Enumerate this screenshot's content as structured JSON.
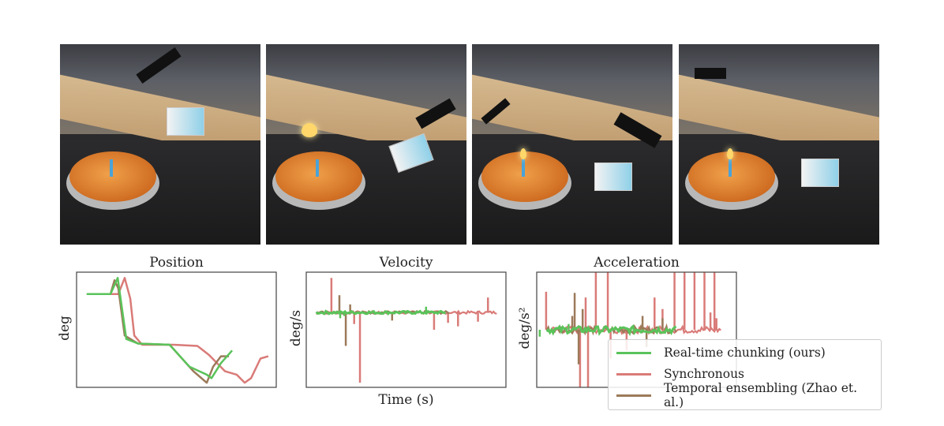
{
  "photos": [
    {
      "label": "frame-1",
      "flame": false
    },
    {
      "label": "frame-2",
      "flame": true
    },
    {
      "label": "frame-3",
      "flame": true
    },
    {
      "label": "frame-4",
      "flame": true
    }
  ],
  "colors": {
    "rtc": "#5ac35a",
    "sync": "#d97b78",
    "te": "#9c7a5a",
    "axis": "#444444"
  },
  "legend": {
    "items": [
      {
        "key": "rtc",
        "label": "Real-time chunking (ours)"
      },
      {
        "key": "sync",
        "label": "Synchronous"
      },
      {
        "key": "te",
        "label": "Temporal ensembling (Zhao et. al.)"
      }
    ]
  },
  "chart_data": [
    {
      "type": "line",
      "title": "Position",
      "xlabel": "",
      "ylabel": "deg",
      "xticks": [],
      "yticks": [],
      "grid": false,
      "xlim": [
        0,
        10
      ],
      "ylim": [
        0,
        1
      ],
      "series": [
        {
          "key": "sync",
          "points": [
            [
              0.51,
              0.81
            ],
            [
              2.09,
              0.81
            ],
            [
              2.41,
              0.95
            ],
            [
              2.69,
              0.77
            ],
            [
              2.89,
              0.45
            ],
            [
              3.28,
              0.37
            ],
            [
              4.86,
              0.37
            ],
            [
              6.05,
              0.36
            ],
            [
              6.64,
              0.28
            ],
            [
              7.43,
              0.14
            ],
            [
              8.02,
              0.11
            ],
            [
              8.42,
              0.04
            ],
            [
              8.74,
              0.08
            ],
            [
              9.21,
              0.25
            ],
            [
              9.6,
              0.27
            ]
          ]
        },
        {
          "key": "te",
          "points": [
            [
              0.51,
              0.81
            ],
            [
              1.7,
              0.81
            ],
            [
              1.9,
              0.93
            ],
            [
              2.09,
              0.86
            ],
            [
              2.41,
              0.45
            ],
            [
              3.08,
              0.38
            ],
            [
              4.66,
              0.37
            ],
            [
              5.85,
              0.14
            ],
            [
              6.52,
              0.04
            ],
            [
              6.84,
              0.18
            ],
            [
              7.23,
              0.27
            ],
            [
              7.63,
              0.27
            ]
          ]
        },
        {
          "key": "rtc",
          "points": [
            [
              0.51,
              0.81
            ],
            [
              1.7,
              0.81
            ],
            [
              2.06,
              0.95
            ],
            [
              2.49,
              0.42
            ],
            [
              3.08,
              0.38
            ],
            [
              4.66,
              0.37
            ],
            [
              5.65,
              0.18
            ],
            [
              6.52,
              0.11
            ],
            [
              6.76,
              0.08
            ],
            [
              7.23,
              0.21
            ],
            [
              7.79,
              0.32
            ]
          ]
        }
      ]
    },
    {
      "type": "line",
      "title": "Velocity",
      "xlabel": "Time (s)",
      "ylabel": "deg/s",
      "xticks": [],
      "yticks": [],
      "grid": false,
      "xlim": [
        0,
        10
      ],
      "ylim": [
        0,
        1
      ],
      "baseline": 0.65,
      "series": [
        {
          "key": "sync",
          "end": 9.6,
          "spikes": [
            [
              1.26,
              0.95
            ],
            [
              2.69,
              0.04
            ],
            [
              2.4,
              0.55
            ],
            [
              6.4,
              0.5
            ],
            [
              7.1,
              0.56
            ],
            [
              7.6,
              0.53
            ],
            [
              8.6,
              0.57
            ],
            [
              9.1,
              0.78
            ]
          ]
        },
        {
          "key": "te",
          "end": 7.2,
          "spikes": [
            [
              1.66,
              0.8
            ],
            [
              1.98,
              0.36
            ],
            [
              2.2,
              0.72
            ],
            [
              4.3,
              0.58
            ]
          ]
        },
        {
          "key": "rtc",
          "end": 7.0,
          "spikes": [
            [
              1.7,
              0.6
            ],
            [
              1.9,
              0.62
            ],
            [
              6.0,
              0.7
            ]
          ]
        }
      ]
    },
    {
      "type": "line",
      "title": "Acceleration",
      "xlabel": "",
      "ylabel": "deg/s²",
      "xticks": [],
      "yticks": [],
      "grid": false,
      "xlim": [
        0,
        10
      ],
      "ylim": [
        0,
        1
      ],
      "baseline": 0.5,
      "series": [
        {
          "key": "sync",
          "end": 9.3,
          "spikes": [
            [
              0.47,
              0.83
            ],
            [
              2.17,
              -0.2
            ],
            [
              2.45,
              0.78
            ],
            [
              2.57,
              -0.2
            ],
            [
              2.96,
              1.2
            ],
            [
              3.56,
              1.2
            ],
            [
              3.7,
              0.25
            ],
            [
              4.5,
              0.32
            ],
            [
              5.9,
              0.78
            ],
            [
              6.3,
              0.68
            ],
            [
              6.9,
              1.2
            ],
            [
              7.4,
              1.2
            ],
            [
              7.9,
              1.2
            ],
            [
              8.4,
              1.2
            ],
            [
              8.9,
              1.2
            ],
            [
              8.7,
              0.65
            ],
            [
              9.0,
              0.6
            ]
          ]
        },
        {
          "key": "te",
          "end": 7.0,
          "spikes": [
            [
              1.78,
              0.62
            ],
            [
              1.9,
              0.82
            ],
            [
              2.1,
              0.2
            ],
            [
              2.3,
              0.68
            ],
            [
              5.3,
              0.62
            ],
            [
              5.5,
              0.35
            ],
            [
              6.3,
              0.6
            ]
          ]
        },
        {
          "key": "rtc",
          "end": 7.0,
          "spikes": [
            [
              0.15,
              0.44
            ],
            [
              1.6,
              0.55
            ]
          ]
        }
      ]
    }
  ]
}
